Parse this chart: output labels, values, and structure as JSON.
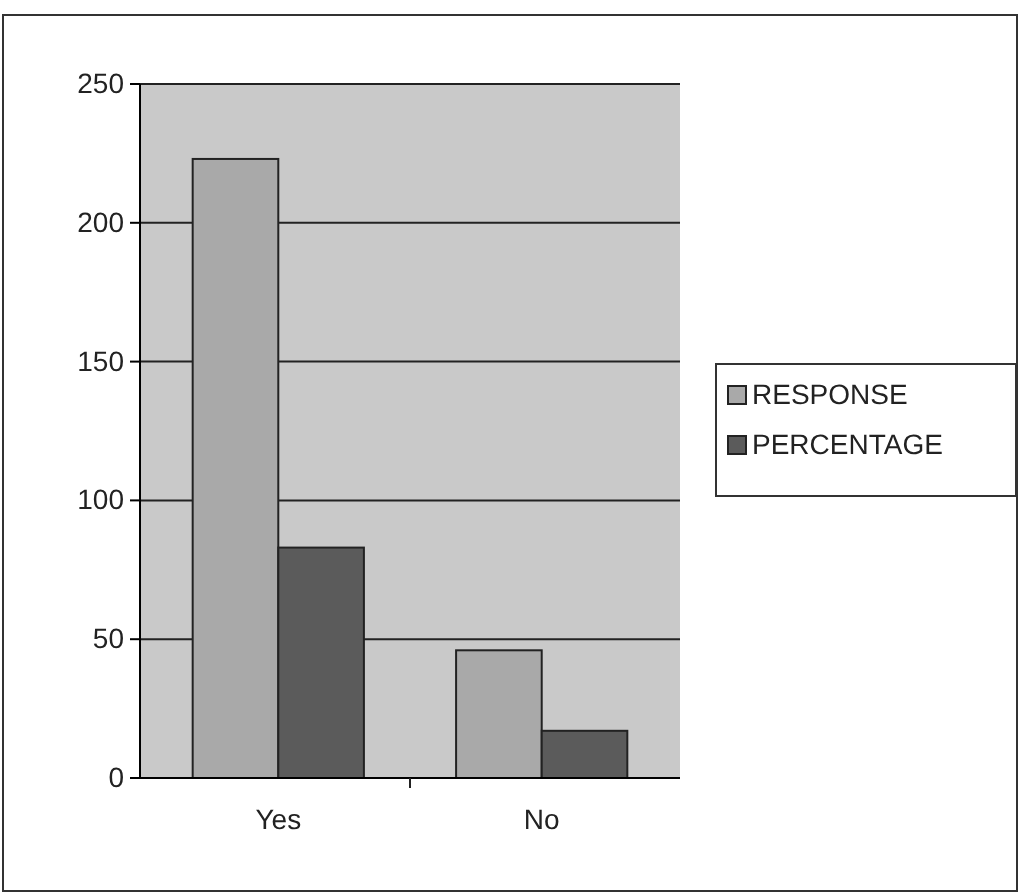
{
  "chart_data": {
    "type": "bar",
    "categories": [
      "Yes",
      "No"
    ],
    "series": [
      {
        "name": "RESPONSE",
        "color": "#a9a9a9",
        "values": [
          223,
          46
        ]
      },
      {
        "name": "PERCENTAGE",
        "color": "#5b5b5b",
        "values": [
          83,
          17
        ]
      }
    ],
    "ylim": [
      0,
      250
    ],
    "yticks": [
      0,
      50,
      100,
      150,
      200,
      250
    ],
    "grid": "y",
    "legend": "right"
  }
}
